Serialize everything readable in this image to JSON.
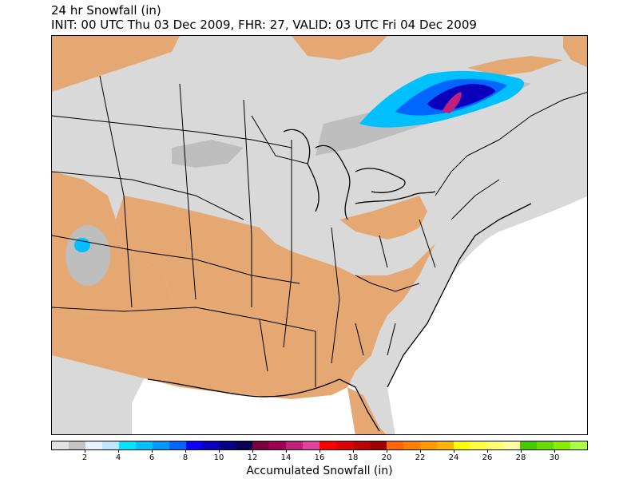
{
  "header": {
    "title": "24 hr Snowfall (in)",
    "subtitle": "INIT: 00 UTC Thu 03 Dec 2009, FHR: 27, VALID: 03 UTC Fri 04 Dec 2009"
  },
  "colorbar": {
    "label": "Accumulated Snowfall (in)",
    "tick_labels": [
      "2",
      "4",
      "6",
      "8",
      "10",
      "12",
      "14",
      "16",
      "18",
      "20",
      "22",
      "24",
      "26",
      "28",
      "30"
    ],
    "colors": [
      "#e2e2e2",
      "#c3c3c3",
      "#e6f2ff",
      "#bce8ff",
      "#00e5ff",
      "#00c0ff",
      "#0099ff",
      "#0066ff",
      "#0a00ff",
      "#0a00bb",
      "#0a0088",
      "#0a0055",
      "#7a0040",
      "#9a0055",
      "#c0207a",
      "#e040a0",
      "#ff0000",
      "#e00000",
      "#c00000",
      "#a00000",
      "#ff6600",
      "#ff8000",
      "#ff9a00",
      "#ffb400",
      "#ffff00",
      "#ffff40",
      "#ffff70",
      "#ffffa0",
      "#44cc00",
      "#66dd00",
      "#88ee00",
      "#aaff44"
    ]
  },
  "map": {
    "land_no_snow_color": "#e6a873",
    "trace_snow_color": "#d9d9d9",
    "light_snow_color": "#bebebe",
    "outline_color": "#000000"
  }
}
